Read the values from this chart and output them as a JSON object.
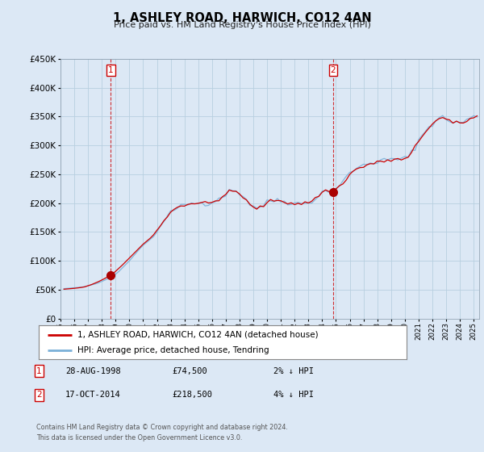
{
  "title": "1, ASHLEY ROAD, HARWICH, CO12 4AN",
  "subtitle": "Price paid vs. HM Land Registry's House Price Index (HPI)",
  "legend_line1": "1, ASHLEY ROAD, HARWICH, CO12 4AN (detached house)",
  "legend_line2": "HPI: Average price, detached house, Tendring",
  "ann1": {
    "num": "1",
    "date": "28-AUG-1998",
    "price": "£74,500",
    "hpi": "2% ↓ HPI",
    "x_year": 1998.65,
    "y_val": 74500
  },
  "ann2": {
    "num": "2",
    "date": "17-OCT-2014",
    "price": "£218,500",
    "hpi": "4% ↓ HPI",
    "x_year": 2014.79,
    "y_val": 218500
  },
  "footer1": "Contains HM Land Registry data © Crown copyright and database right 2024.",
  "footer2": "This data is licensed under the Open Government Licence v3.0.",
  "ylim": [
    0,
    450000
  ],
  "yticks": [
    0,
    50000,
    100000,
    150000,
    200000,
    250000,
    300000,
    350000,
    400000,
    450000
  ],
  "xlim_start": 1995.25,
  "xlim_end": 2025.4,
  "bg_color": "#dce8f5",
  "plot_bg": "#dce8f5",
  "red_line_color": "#cc0000",
  "blue_line_color": "#7ab0d8",
  "grid_color": "#b8cfe0",
  "vline_color": "#cc0000",
  "marker_color": "#aa0000",
  "hpi_line": [
    [
      1995.25,
      52000
    ],
    [
      1995.5,
      52500
    ],
    [
      1995.75,
      53000
    ],
    [
      1996.0,
      53500
    ],
    [
      1996.25,
      54000
    ],
    [
      1996.5,
      54500
    ],
    [
      1996.75,
      55500
    ],
    [
      1997.0,
      57000
    ],
    [
      1997.25,
      58500
    ],
    [
      1997.5,
      60000
    ],
    [
      1997.75,
      62000
    ],
    [
      1998.0,
      64500
    ],
    [
      1998.25,
      67000
    ],
    [
      1998.5,
      70000
    ],
    [
      1998.75,
      73500
    ],
    [
      1999.0,
      77000
    ],
    [
      1999.25,
      82000
    ],
    [
      1999.5,
      88000
    ],
    [
      1999.75,
      94000
    ],
    [
      2000.0,
      100000
    ],
    [
      2000.25,
      107000
    ],
    [
      2000.5,
      114000
    ],
    [
      2000.75,
      121000
    ],
    [
      2001.0,
      127000
    ],
    [
      2001.25,
      132000
    ],
    [
      2001.5,
      137000
    ],
    [
      2001.75,
      142000
    ],
    [
      2002.0,
      150000
    ],
    [
      2002.25,
      159000
    ],
    [
      2002.5,
      168000
    ],
    [
      2002.75,
      176000
    ],
    [
      2003.0,
      183000
    ],
    [
      2003.25,
      188000
    ],
    [
      2003.5,
      192000
    ],
    [
      2003.75,
      194000
    ],
    [
      2004.0,
      196000
    ],
    [
      2004.25,
      198000
    ],
    [
      2004.5,
      199000
    ],
    [
      2004.75,
      200000
    ],
    [
      2005.0,
      200500
    ],
    [
      2005.25,
      201000
    ],
    [
      2005.5,
      200000
    ],
    [
      2005.75,
      200500
    ],
    [
      2006.0,
      202000
    ],
    [
      2006.25,
      205000
    ],
    [
      2006.5,
      208000
    ],
    [
      2006.75,
      212000
    ],
    [
      2007.0,
      216000
    ],
    [
      2007.25,
      220000
    ],
    [
      2007.5,
      222000
    ],
    [
      2007.75,
      221000
    ],
    [
      2008.0,
      218000
    ],
    [
      2008.25,
      213000
    ],
    [
      2008.5,
      206000
    ],
    [
      2008.75,
      199000
    ],
    [
      2009.0,
      194000
    ],
    [
      2009.25,
      193000
    ],
    [
      2009.5,
      194000
    ],
    [
      2009.75,
      197000
    ],
    [
      2010.0,
      201000
    ],
    [
      2010.25,
      204000
    ],
    [
      2010.5,
      205000
    ],
    [
      2010.75,
      206000
    ],
    [
      2011.0,
      205000
    ],
    [
      2011.25,
      203000
    ],
    [
      2011.5,
      202000
    ],
    [
      2011.75,
      201000
    ],
    [
      2012.0,
      200000
    ],
    [
      2012.25,
      199500
    ],
    [
      2012.5,
      199000
    ],
    [
      2012.75,
      200000
    ],
    [
      2013.0,
      201000
    ],
    [
      2013.25,
      204000
    ],
    [
      2013.5,
      208000
    ],
    [
      2013.75,
      213000
    ],
    [
      2014.0,
      218000
    ],
    [
      2014.25,
      221000
    ],
    [
      2014.5,
      223000
    ],
    [
      2014.75,
      224000
    ],
    [
      2015.0,
      226000
    ],
    [
      2015.25,
      231000
    ],
    [
      2015.5,
      237000
    ],
    [
      2015.75,
      244000
    ],
    [
      2016.0,
      251000
    ],
    [
      2016.25,
      257000
    ],
    [
      2016.5,
      261000
    ],
    [
      2016.75,
      263000
    ],
    [
      2017.0,
      265000
    ],
    [
      2017.25,
      268000
    ],
    [
      2017.5,
      270000
    ],
    [
      2017.75,
      271000
    ],
    [
      2018.0,
      272000
    ],
    [
      2018.25,
      273000
    ],
    [
      2018.5,
      274000
    ],
    [
      2018.75,
      275000
    ],
    [
      2019.0,
      275000
    ],
    [
      2019.25,
      276000
    ],
    [
      2019.5,
      276500
    ],
    [
      2019.75,
      277000
    ],
    [
      2020.0,
      277000
    ],
    [
      2020.25,
      280000
    ],
    [
      2020.5,
      288000
    ],
    [
      2020.75,
      298000
    ],
    [
      2021.0,
      308000
    ],
    [
      2021.25,
      317000
    ],
    [
      2021.5,
      325000
    ],
    [
      2021.75,
      332000
    ],
    [
      2022.0,
      338000
    ],
    [
      2022.25,
      343000
    ],
    [
      2022.5,
      347000
    ],
    [
      2022.75,
      348000
    ],
    [
      2023.0,
      346000
    ],
    [
      2023.25,
      343000
    ],
    [
      2023.5,
      340000
    ],
    [
      2023.75,
      339000
    ],
    [
      2024.0,
      339000
    ],
    [
      2024.25,
      341000
    ],
    [
      2024.5,
      344000
    ],
    [
      2024.75,
      347000
    ],
    [
      2025.0,
      349000
    ],
    [
      2025.25,
      351000
    ]
  ],
  "price_line": [
    [
      1995.25,
      51000
    ],
    [
      1995.5,
      51500
    ],
    [
      1995.75,
      52000
    ],
    [
      1996.0,
      52500
    ],
    [
      1996.25,
      53200
    ],
    [
      1996.5,
      54000
    ],
    [
      1996.75,
      55000
    ],
    [
      1997.0,
      57000
    ],
    [
      1997.25,
      59000
    ],
    [
      1997.5,
      61500
    ],
    [
      1997.75,
      64000
    ],
    [
      1998.0,
      67000
    ],
    [
      1998.25,
      70000
    ],
    [
      1998.5,
      73500
    ],
    [
      1998.75,
      77000
    ],
    [
      1999.0,
      82000
    ],
    [
      1999.25,
      87500
    ],
    [
      1999.5,
      93000
    ],
    [
      1999.75,
      99000
    ],
    [
      2000.0,
      105000
    ],
    [
      2000.25,
      111000
    ],
    [
      2000.5,
      117000
    ],
    [
      2000.75,
      123000
    ],
    [
      2001.0,
      129000
    ],
    [
      2001.25,
      134000
    ],
    [
      2001.5,
      139000
    ],
    [
      2001.75,
      145000
    ],
    [
      2002.0,
      153000
    ],
    [
      2002.25,
      161000
    ],
    [
      2002.5,
      170000
    ],
    [
      2002.75,
      178000
    ],
    [
      2003.0,
      184000
    ],
    [
      2003.25,
      189000
    ],
    [
      2003.5,
      193000
    ],
    [
      2003.75,
      195500
    ],
    [
      2004.0,
      197000
    ],
    [
      2004.25,
      198500
    ],
    [
      2004.5,
      199500
    ],
    [
      2004.75,
      200000
    ],
    [
      2005.0,
      200000
    ],
    [
      2005.25,
      200500
    ],
    [
      2005.5,
      200000
    ],
    [
      2005.75,
      200000
    ],
    [
      2006.0,
      201000
    ],
    [
      2006.25,
      204000
    ],
    [
      2006.5,
      207000
    ],
    [
      2006.75,
      211000
    ],
    [
      2007.0,
      215000
    ],
    [
      2007.25,
      219000
    ],
    [
      2007.5,
      221000
    ],
    [
      2007.75,
      220000
    ],
    [
      2008.0,
      216000
    ],
    [
      2008.25,
      211000
    ],
    [
      2008.5,
      204000
    ],
    [
      2008.75,
      197000
    ],
    [
      2009.0,
      192000
    ],
    [
      2009.25,
      191000
    ],
    [
      2009.5,
      193000
    ],
    [
      2009.75,
      196000
    ],
    [
      2010.0,
      200000
    ],
    [
      2010.25,
      203000
    ],
    [
      2010.5,
      205000
    ],
    [
      2010.75,
      205500
    ],
    [
      2011.0,
      204000
    ],
    [
      2011.25,
      202000
    ],
    [
      2011.5,
      201000
    ],
    [
      2011.75,
      200500
    ],
    [
      2012.0,
      199000
    ],
    [
      2012.25,
      199000
    ],
    [
      2012.5,
      199000
    ],
    [
      2012.75,
      200000
    ],
    [
      2013.0,
      201500
    ],
    [
      2013.25,
      204000
    ],
    [
      2013.5,
      208500
    ],
    [
      2013.75,
      213500
    ],
    [
      2014.0,
      218500
    ],
    [
      2014.25,
      221000
    ],
    [
      2014.5,
      222500
    ],
    [
      2014.75,
      222500
    ],
    [
      2015.0,
      224000
    ],
    [
      2015.25,
      229000
    ],
    [
      2015.5,
      235000
    ],
    [
      2015.75,
      242000
    ],
    [
      2016.0,
      249000
    ],
    [
      2016.25,
      255000
    ],
    [
      2016.5,
      259000
    ],
    [
      2016.75,
      261000
    ],
    [
      2017.0,
      263000
    ],
    [
      2017.25,
      266000
    ],
    [
      2017.5,
      268000
    ],
    [
      2017.75,
      269000
    ],
    [
      2018.0,
      270000
    ],
    [
      2018.25,
      272000
    ],
    [
      2018.5,
      273000
    ],
    [
      2018.75,
      274000
    ],
    [
      2019.0,
      274000
    ],
    [
      2019.25,
      275000
    ],
    [
      2019.5,
      275500
    ],
    [
      2019.75,
      276000
    ],
    [
      2020.0,
      276000
    ],
    [
      2020.25,
      279000
    ],
    [
      2020.5,
      287000
    ],
    [
      2020.75,
      297000
    ],
    [
      2021.0,
      307000
    ],
    [
      2021.25,
      316000
    ],
    [
      2021.5,
      324000
    ],
    [
      2021.75,
      331000
    ],
    [
      2022.0,
      337000
    ],
    [
      2022.25,
      342000
    ],
    [
      2022.5,
      346000
    ],
    [
      2022.75,
      347000
    ],
    [
      2023.0,
      345500
    ],
    [
      2023.25,
      342000
    ],
    [
      2023.5,
      339000
    ],
    [
      2023.75,
      338000
    ],
    [
      2024.0,
      338000
    ],
    [
      2024.25,
      340000
    ],
    [
      2024.5,
      343000
    ],
    [
      2024.75,
      346000
    ],
    [
      2025.0,
      348000
    ],
    [
      2025.25,
      350000
    ]
  ]
}
